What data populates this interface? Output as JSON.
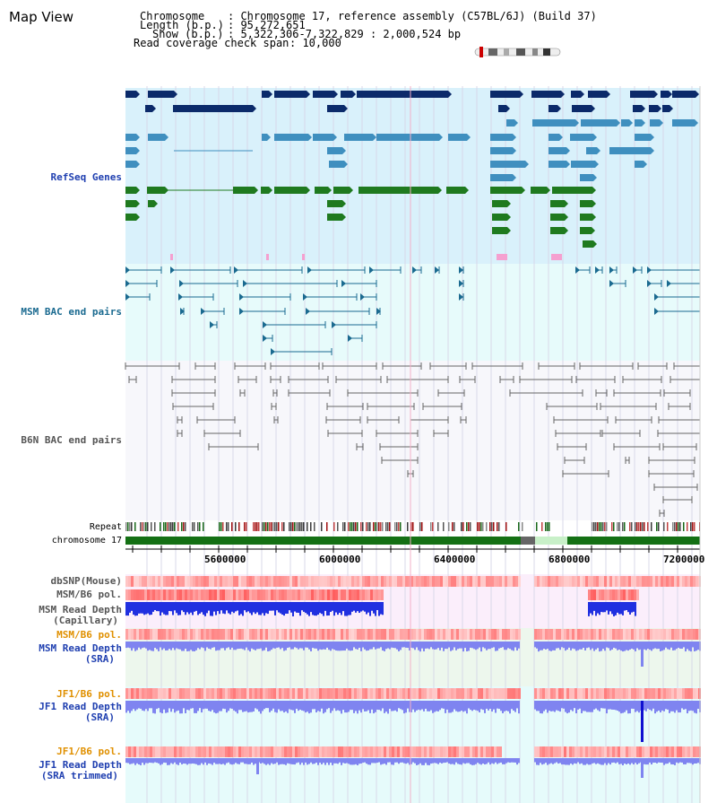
{
  "app": {
    "title": "Map View"
  },
  "header": {
    "chromosome_key": "Chromosome",
    "chromosome_val": ": Chromosome 17, reference assembly (C57BL/6J) (Build 37)",
    "length_key": "Length (b.p.)",
    "length_val": ": 95,272,651",
    "show_key": "Show (b.p.)",
    "show_val": ": 5,322,306-7,322,829 : 2,000,524 bp",
    "coverage_key": "Read coverage check span",
    "coverage_val": ": 10,000"
  },
  "tracks": {
    "refseq": "RefSeq Genes",
    "msm_bac": "MSM BAC end pairs",
    "b6n_bac": "B6N BAC end pairs",
    "repeat": "Repeat",
    "chromosome": "chromosome 17",
    "dbsnp": "dbSNP(Mouse)",
    "msm_pol": "MSM/B6 pol.",
    "msm_depth_cap_1": "MSM Read Depth",
    "msm_depth_cap_2": "(Capillary)",
    "msm_pol2": "MSM/B6 pol.",
    "msm_sra_1": "MSM Read Depth",
    "msm_sra_2": "(SRA)",
    "jf1_pol": "JF1/B6 pol.",
    "jf1_sra_1": "JF1 Read Depth",
    "jf1_sra_2": "(SRA)",
    "jf1_pol2": "JF1/B6 pol.",
    "jf1_trim_1": "JF1 Read Depth",
    "jf1_trim_2": "(SRA trimmed)"
  },
  "axis": {
    "ticks": [
      "5600000",
      "6000000",
      "6400000",
      "6800000",
      "7200000"
    ]
  },
  "colors": {
    "refseq_bg": "#d9f1fb",
    "msm_bg": "#e7fbfb",
    "b6n_bg": "#f7f7fb",
    "gene_dark": "#0b2a6a",
    "gene_mid": "#3f8fbf",
    "gene_green": "#1f7a1f",
    "msm_line": "#1a6a90",
    "b6n_line": "#666666",
    "label_blue": "#1f3fb0",
    "label_teal": "#1a6a90",
    "label_orange": "#e09000",
    "depth_blue": "#2030e0",
    "depth_light": "#7f84f0",
    "pol_red": "#e84a4a"
  }
}
